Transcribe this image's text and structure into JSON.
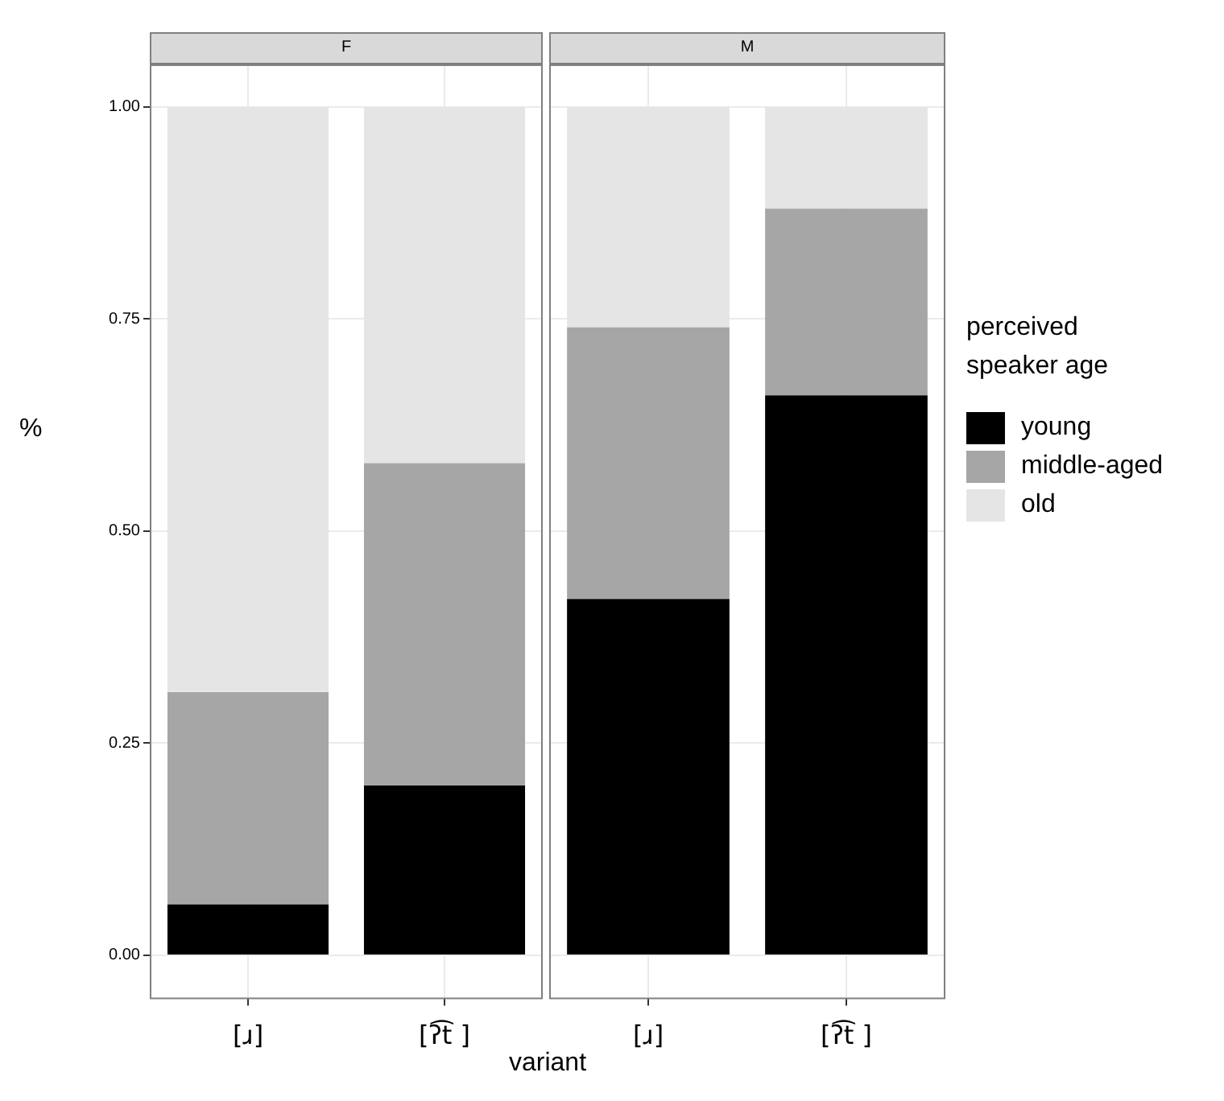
{
  "chart_data": [
    {
      "type": "bar",
      "title": "F",
      "ylabel": "%",
      "xlabel": "variant",
      "legend_title": "perceived speaker age",
      "categories": [
        "[ɹ]",
        "[ʔ͡t ]"
      ],
      "stacked": true,
      "ylim": [
        -0.05,
        1.05
      ],
      "yticks": [
        {
          "value": 0,
          "label": "0.00"
        },
        {
          "value": 0.25,
          "label": "0.25"
        },
        {
          "value": 0.5,
          "label": "0.50"
        },
        {
          "value": 0.75,
          "label": "0.75"
        },
        {
          "value": 1,
          "label": "1.00"
        }
      ],
      "grid": true,
      "legend": "right",
      "series": [
        {
          "name": "young",
          "color": "#000000",
          "values": [
            0.06,
            0.2
          ]
        },
        {
          "name": "middle-aged",
          "color": "#a6a6a6",
          "values": [
            0.25,
            0.38
          ]
        },
        {
          "name": "old",
          "color": "#e5e5e5",
          "values": [
            0.69,
            0.42
          ]
        }
      ]
    },
    {
      "type": "bar",
      "title": "M",
      "categories": [
        "[ɹ]",
        "[ʔ͡t ]"
      ],
      "stacked": true,
      "ylim": [
        -0.05,
        1.05
      ],
      "yticks": [
        {
          "value": 0,
          "label": null
        },
        {
          "value": 0.25,
          "label": null
        },
        {
          "value": 0.5,
          "label": null
        },
        {
          "value": 0.75,
          "label": null
        },
        {
          "value": 1,
          "label": null
        }
      ],
      "grid": true,
      "tick_labels": "x",
      "series": [
        {
          "color": "#000000",
          "values": [
            0.42,
            0.66
          ]
        },
        {
          "color": "#a6a6a6",
          "values": [
            0.32,
            0.22
          ]
        },
        {
          "color": "#e5e5e5",
          "values": [
            0.26,
            0.12
          ]
        }
      ]
    }
  ]
}
